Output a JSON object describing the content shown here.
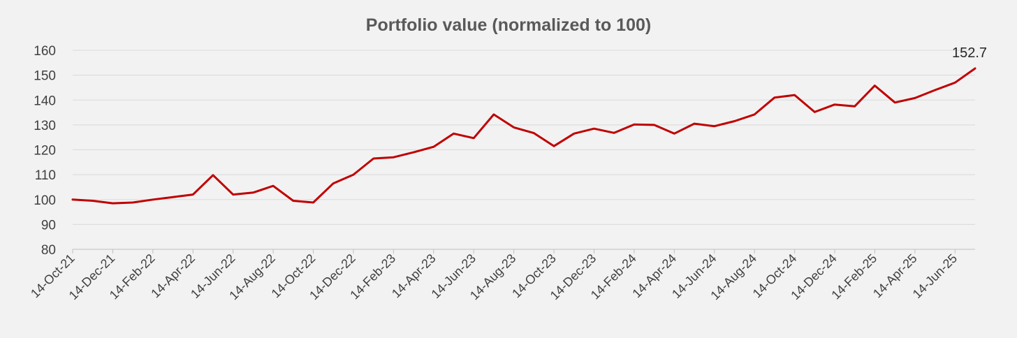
{
  "chart_data": {
    "type": "line",
    "title": "Portfolio value (normalized to 100)",
    "xlabel": "",
    "ylabel": "",
    "ylim": [
      80,
      160
    ],
    "yticks": [
      80,
      90,
      100,
      110,
      120,
      130,
      140,
      150,
      160
    ],
    "grid": true,
    "legend": "none",
    "x_tick_labels": [
      "14-Oct-21",
      "14-Dec-21",
      "14-Feb-22",
      "14-Apr-22",
      "14-Jun-22",
      "14-Aug-22",
      "14-Oct-22",
      "14-Dec-22",
      "14-Feb-23",
      "14-Apr-23",
      "14-Jun-23",
      "14-Aug-23",
      "14-Oct-23",
      "14-Dec-23",
      "14-Feb-24",
      "14-Apr-24",
      "14-Jun-24",
      "14-Aug-24",
      "14-Oct-24",
      "14-Dec-24",
      "14-Feb-25",
      "14-Apr-25",
      "14-Jun-25"
    ],
    "x": [
      "2021-10-14",
      "2021-11-14",
      "2021-12-14",
      "2022-01-14",
      "2022-02-14",
      "2022-03-14",
      "2022-04-14",
      "2022-05-14",
      "2022-06-14",
      "2022-07-14",
      "2022-08-14",
      "2022-09-14",
      "2022-10-14",
      "2022-11-14",
      "2022-12-14",
      "2023-01-14",
      "2023-02-14",
      "2023-03-14",
      "2023-04-14",
      "2023-05-14",
      "2023-06-14",
      "2023-07-14",
      "2023-08-14",
      "2023-09-14",
      "2023-10-14",
      "2023-11-14",
      "2023-12-14",
      "2024-01-14",
      "2024-02-14",
      "2024-03-14",
      "2024-04-14",
      "2024-05-14",
      "2024-06-14",
      "2024-07-14",
      "2024-08-14",
      "2024-09-14",
      "2024-10-14",
      "2024-11-14",
      "2024-12-14",
      "2025-01-14",
      "2025-02-14",
      "2025-03-14",
      "2025-04-14",
      "2025-05-14",
      "2025-06-14",
      "2025-07-14"
    ],
    "series": [
      {
        "color": "#c00000",
        "values": [
          100.0,
          99.5,
          98.5,
          98.8,
          100.0,
          101.0,
          102.0,
          109.8,
          102.0,
          102.8,
          105.5,
          99.5,
          98.8,
          106.5,
          110.0,
          116.5,
          117.0,
          119.0,
          121.2,
          126.5,
          124.7,
          134.2,
          129.0,
          126.7,
          121.5,
          126.5,
          128.5,
          126.8,
          130.2,
          130.0,
          126.5,
          130.5,
          129.5,
          131.5,
          134.2,
          141.0,
          142.0,
          135.2,
          138.2,
          137.5,
          145.8,
          139.0,
          140.8,
          144.0,
          147.0,
          152.7
        ]
      }
    ],
    "annotations": [
      {
        "text": "152.7",
        "point": "last"
      }
    ]
  }
}
